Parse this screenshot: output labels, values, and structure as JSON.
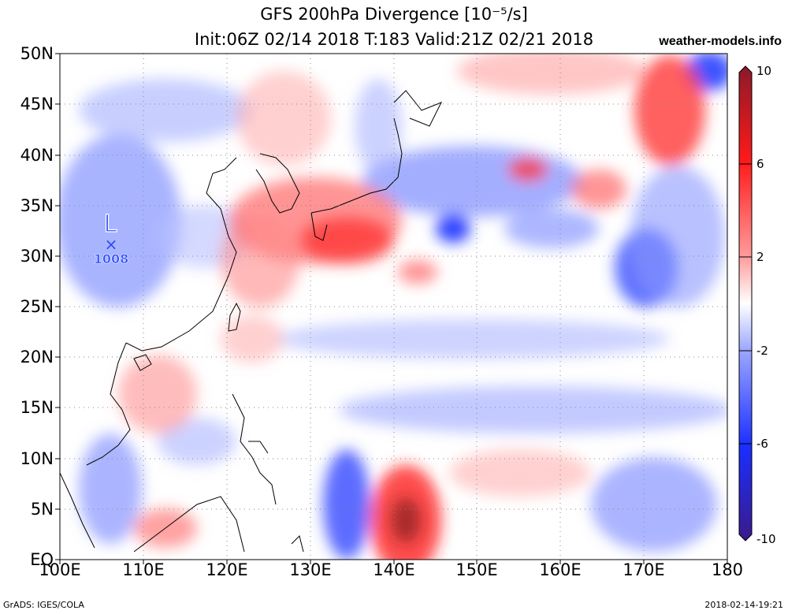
{
  "title": {
    "line1": "GFS 200hPa Divergence [10⁻⁵/s]",
    "line2": "Init:06Z 02/14 2018 T:183 Valid:21Z 02/21 2018",
    "site": "weather-models.info"
  },
  "axes": {
    "y_labels": [
      "50N",
      "45N",
      "40N",
      "35N",
      "30N",
      "25N",
      "20N",
      "15N",
      "10N",
      "5N",
      "EQ"
    ],
    "x_labels": [
      "100E",
      "110E",
      "120E",
      "130E",
      "140E",
      "150E",
      "160E",
      "170E",
      "180"
    ],
    "lon_range": [
      100,
      180
    ],
    "lat_range": [
      0,
      50
    ]
  },
  "colorbar": {
    "labels": [
      "10",
      "6",
      "2",
      "-2",
      "-6",
      "-10"
    ],
    "colors": {
      "max": "#a01a1a",
      "high": "#ff1a1a",
      "mid_high": "#ff9a9a",
      "zero": "#ffffff",
      "mid_low": "#9aa6ff",
      "low": "#1a2fff",
      "min": "#3a1a8a"
    }
  },
  "pressure_center": {
    "type": "L",
    "value": "1008",
    "lon": 106,
    "lat": 31.5,
    "color": "#2a4bff"
  },
  "footer": {
    "left": "GrADS: IGES/COLA",
    "right": "2018-02-14-19:21"
  }
}
